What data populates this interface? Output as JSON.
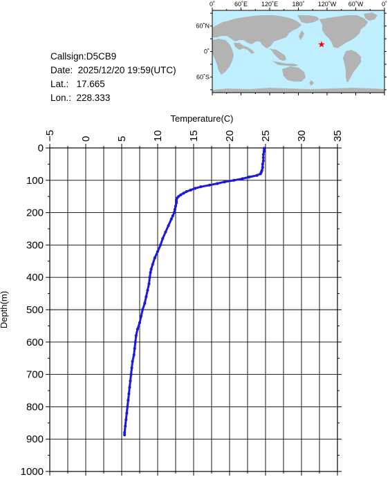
{
  "station": {
    "callsign_label": "Callsign:D5CB9",
    "date_label": "Date:  2025/12/20 19:59(UTC)",
    "lat_label": "Lat.:   17.665",
    "lon_label": "Lon.:  228.333"
  },
  "map": {
    "top_labels": [
      "0˚",
      "60˚E",
      "120˚E",
      "180˚",
      "120˚W",
      "60˚W",
      "0˚"
    ],
    "side_labels": [
      "60˚N",
      "0˚",
      "60˚S"
    ],
    "ocean_color": "#bfeffe",
    "land_color": "#b3b3b3",
    "marker_color": "#ff0000",
    "marker_lat": 17.665,
    "marker_lon": 228.333
  },
  "chart_data": {
    "type": "line",
    "xlabel": "Temperature(C)",
    "ylabel": "Depth(m)",
    "xlim": [
      -5,
      35
    ],
    "ylim": [
      1000,
      0
    ],
    "x_ticks": [
      -5,
      0,
      5,
      10,
      15,
      20,
      25,
      30,
      35
    ],
    "y_ticks": [
      0,
      100,
      200,
      300,
      400,
      500,
      600,
      700,
      800,
      900,
      1000
    ],
    "grid": true,
    "line_color": "#1a1adb",
    "series": [
      {
        "depth": [
          1,
          10,
          20,
          30,
          40,
          50,
          60,
          70,
          75,
          80,
          85,
          90,
          95,
          100,
          105,
          110,
          115,
          120,
          125,
          130,
          135,
          140,
          145,
          150,
          155,
          160,
          165,
          170,
          180,
          190,
          200,
          210,
          220,
          240,
          260,
          280,
          300,
          320,
          340,
          360,
          375,
          385,
          400,
          420,
          440,
          460,
          480,
          500,
          520,
          540,
          560,
          580,
          600,
          620,
          640,
          660,
          680,
          700,
          720,
          740,
          760,
          780,
          800,
          820,
          840,
          860,
          880,
          887
        ],
        "temperature": [
          24.8,
          24.8,
          24.7,
          24.7,
          24.7,
          24.6,
          24.6,
          24.5,
          24.4,
          24.3,
          23.8,
          22.7,
          21.8,
          20.6,
          19.3,
          18.3,
          17.2,
          16.0,
          15.2,
          14.6,
          14.0,
          13.6,
          13.2,
          12.9,
          12.7,
          12.6,
          12.6,
          12.6,
          12.5,
          12.4,
          12.3,
          12.1,
          11.9,
          11.5,
          11.1,
          10.7,
          10.4,
          10.0,
          9.6,
          9.3,
          9.1,
          9.0,
          8.9,
          8.8,
          8.6,
          8.4,
          8.2,
          7.9,
          7.7,
          7.5,
          7.2,
          7.0,
          6.9,
          6.8,
          6.7,
          6.5,
          6.4,
          6.3,
          6.2,
          6.1,
          6.0,
          5.9,
          5.8,
          5.7,
          5.6,
          5.5,
          5.4,
          5.4
        ]
      }
    ]
  }
}
